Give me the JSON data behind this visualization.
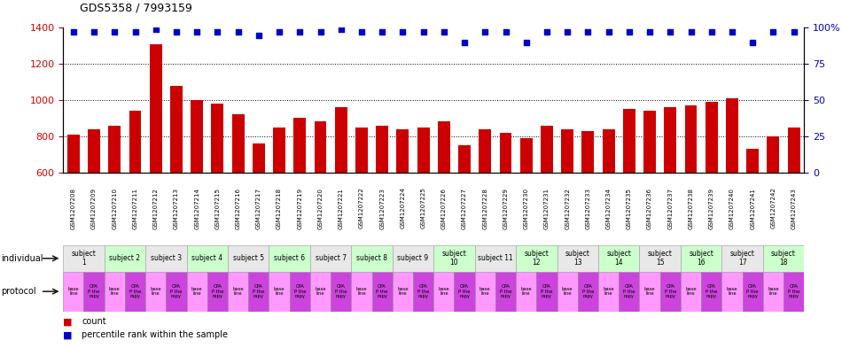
{
  "title": "GDS5358 / 7993159",
  "samples": [
    "GSM1207208",
    "GSM1207209",
    "GSM1207210",
    "GSM1207211",
    "GSM1207212",
    "GSM1207213",
    "GSM1207214",
    "GSM1207215",
    "GSM1207216",
    "GSM1207217",
    "GSM1207218",
    "GSM1207219",
    "GSM1207220",
    "GSM1207221",
    "GSM1207222",
    "GSM1207223",
    "GSM1207224",
    "GSM1207225",
    "GSM1207226",
    "GSM1207227",
    "GSM1207228",
    "GSM1207229",
    "GSM1207230",
    "GSM1207231",
    "GSM1207232",
    "GSM1207233",
    "GSM1207234",
    "GSM1207235",
    "GSM1207236",
    "GSM1207237",
    "GSM1207238",
    "GSM1207239",
    "GSM1207240",
    "GSM1207241",
    "GSM1207242",
    "GSM1207243"
  ],
  "counts": [
    810,
    840,
    860,
    940,
    1310,
    1080,
    1000,
    980,
    920,
    760,
    850,
    900,
    880,
    960,
    850,
    860,
    840,
    850,
    880,
    750,
    840,
    820,
    790,
    860,
    840,
    830,
    840,
    950,
    940,
    960,
    970,
    990,
    1010,
    730,
    800,
    850
  ],
  "percentile_ranks": [
    97,
    97,
    97,
    97,
    99,
    97,
    97,
    97,
    97,
    95,
    97,
    97,
    97,
    99,
    97,
    97,
    97,
    97,
    97,
    90,
    97,
    97,
    90,
    97,
    97,
    97,
    97,
    97,
    97,
    97,
    97,
    97,
    97,
    90,
    97,
    97
  ],
  "ylim_left": [
    600,
    1400
  ],
  "ylim_right": [
    0,
    100
  ],
  "yticks_left": [
    600,
    800,
    1000,
    1200,
    1400
  ],
  "yticks_right": [
    0,
    25,
    50,
    75,
    100
  ],
  "bar_color": "#cc0000",
  "dot_color": "#0000cc",
  "bar_width": 0.6,
  "subjects": [
    {
      "label": "subject\n1",
      "start": 0,
      "end": 1,
      "color": "#e8e8e8"
    },
    {
      "label": "subject 2",
      "start": 2,
      "end": 3,
      "color": "#ccffcc"
    },
    {
      "label": "subject 3",
      "start": 4,
      "end": 5,
      "color": "#e8e8e8"
    },
    {
      "label": "subject 4",
      "start": 6,
      "end": 7,
      "color": "#ccffcc"
    },
    {
      "label": "subject 5",
      "start": 8,
      "end": 9,
      "color": "#e8e8e8"
    },
    {
      "label": "subject 6",
      "start": 10,
      "end": 11,
      "color": "#ccffcc"
    },
    {
      "label": "subject 7",
      "start": 12,
      "end": 13,
      "color": "#e8e8e8"
    },
    {
      "label": "subject 8",
      "start": 14,
      "end": 15,
      "color": "#ccffcc"
    },
    {
      "label": "subject 9",
      "start": 16,
      "end": 17,
      "color": "#e8e8e8"
    },
    {
      "label": "subject\n10",
      "start": 18,
      "end": 19,
      "color": "#ccffcc"
    },
    {
      "label": "subject 11",
      "start": 20,
      "end": 21,
      "color": "#e8e8e8"
    },
    {
      "label": "subject\n12",
      "start": 22,
      "end": 23,
      "color": "#ccffcc"
    },
    {
      "label": "subject\n13",
      "start": 24,
      "end": 25,
      "color": "#e8e8e8"
    },
    {
      "label": "subject\n14",
      "start": 26,
      "end": 27,
      "color": "#ccffcc"
    },
    {
      "label": "subject\n15",
      "start": 28,
      "end": 29,
      "color": "#e8e8e8"
    },
    {
      "label": "subject\n16",
      "start": 30,
      "end": 31,
      "color": "#ccffcc"
    },
    {
      "label": "subject\n17",
      "start": 32,
      "end": 33,
      "color": "#e8e8e8"
    },
    {
      "label": "subject\n18",
      "start": 34,
      "end": 35,
      "color": "#ccffcc"
    }
  ],
  "gsm_row_color": "#d0d0d0",
  "ticklabel_color_left": "#cc0000",
  "ticklabel_color_right": "#0000cc",
  "legend_count_color": "#cc0000",
  "legend_dot_color": "#0000cc",
  "prot_colors": [
    "#ff99ff",
    "#cc44dd"
  ],
  "prot_labels": [
    "base\nline",
    "CPA\nP the\nrapy"
  ]
}
